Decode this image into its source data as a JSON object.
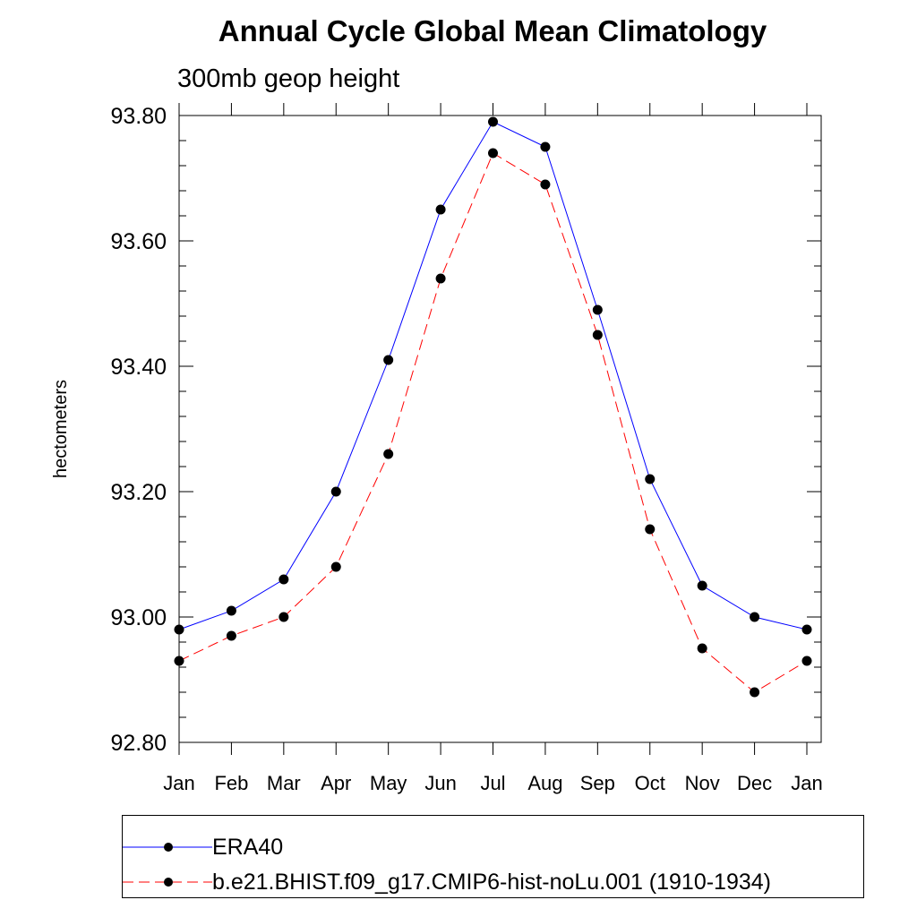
{
  "title": "Annual Cycle Global Mean Climatology",
  "subtitle": "300mb geop height",
  "chart_data": {
    "type": "line",
    "title": "Annual Cycle Global Mean Climatology",
    "subtitle": "300mb geop height",
    "xlabel": "",
    "ylabel": "hectometers",
    "categories": [
      "Jan",
      "Feb",
      "Mar",
      "Apr",
      "May",
      "Jun",
      "Jul",
      "Aug",
      "Sep",
      "Oct",
      "Nov",
      "Dec",
      "Jan"
    ],
    "ylim": [
      92.8,
      93.8
    ],
    "yticks": [
      "92.80",
      "93.00",
      "93.20",
      "93.40",
      "93.60",
      "93.80"
    ],
    "grid": false,
    "legend_position": "bottom",
    "series": [
      {
        "name": "ERA40",
        "color": "#0000ff",
        "style": "solid",
        "marker": "filled-circle",
        "values": [
          92.98,
          93.01,
          93.06,
          93.2,
          93.41,
          93.65,
          93.79,
          93.75,
          93.49,
          93.22,
          93.05,
          93.0,
          92.98
        ]
      },
      {
        "name": "b.e21.BHIST.f09_g17.CMIP6-hist-noLu.001 (1910-1934)",
        "color": "#ff0000",
        "style": "dashed",
        "marker": "filled-circle",
        "values": [
          92.93,
          92.97,
          93.0,
          93.08,
          93.26,
          93.54,
          93.74,
          93.69,
          93.45,
          93.14,
          92.95,
          92.88,
          92.93
        ]
      }
    ]
  }
}
